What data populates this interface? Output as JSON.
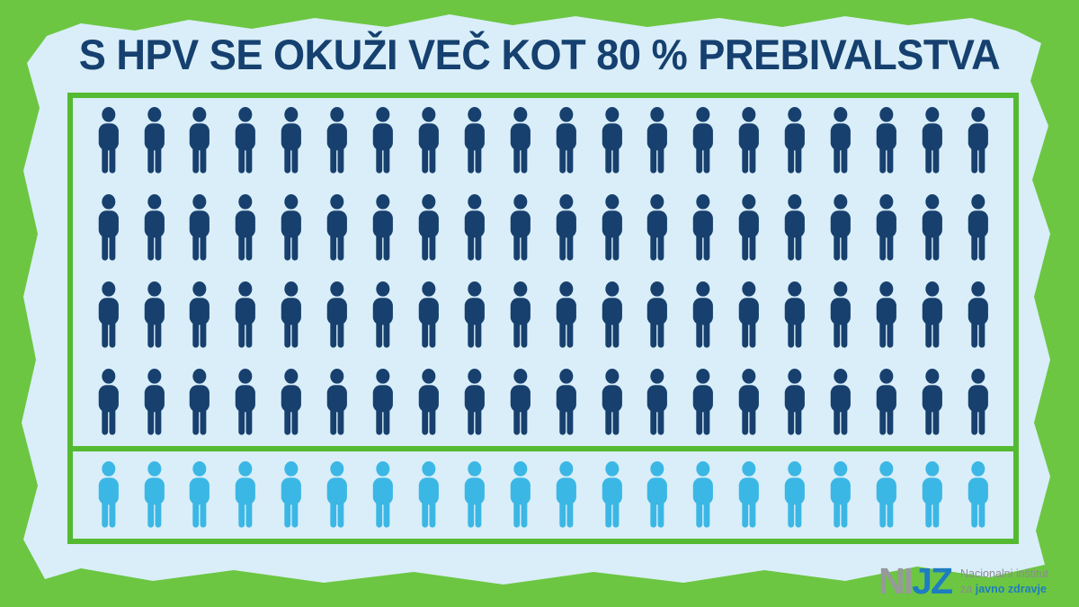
{
  "title": "S HPV SE OKUŽI VEČ KOT 80 % PREBIVALSTVA",
  "chart_data": {
    "type": "pictogram",
    "title": "S HPV SE OKUŽI VEČ KOT 80 % PREBIVALSTVA",
    "total_figures": 100,
    "figures_per_row": 20,
    "groups": [
      {
        "name": "infected-dark-blue",
        "count": 80,
        "rows": 4,
        "color": "#17406e"
      },
      {
        "name": "remainder-light-blue",
        "count": 20,
        "rows": 1,
        "color": "#3bb7e5"
      }
    ],
    "highlighted_value_from_title": "80 %",
    "legend": "none",
    "grid": "off"
  },
  "colors": {
    "frame_green": "#6cc642",
    "box_border_green": "#54ba31",
    "paper_blue": "#d9eef8",
    "title_navy": "#15406f",
    "dark_figure": "#17406e",
    "light_figure": "#3bb7e5",
    "logo_gray": "#97999b",
    "logo_blue": "#1e7dc0"
  },
  "logo": {
    "acronym_gray": "NI",
    "acronym_blue": "JZ",
    "line1": "Nacionalni inštitut",
    "line2_prefix": "za",
    "line2_bold": "javno zdravje"
  }
}
